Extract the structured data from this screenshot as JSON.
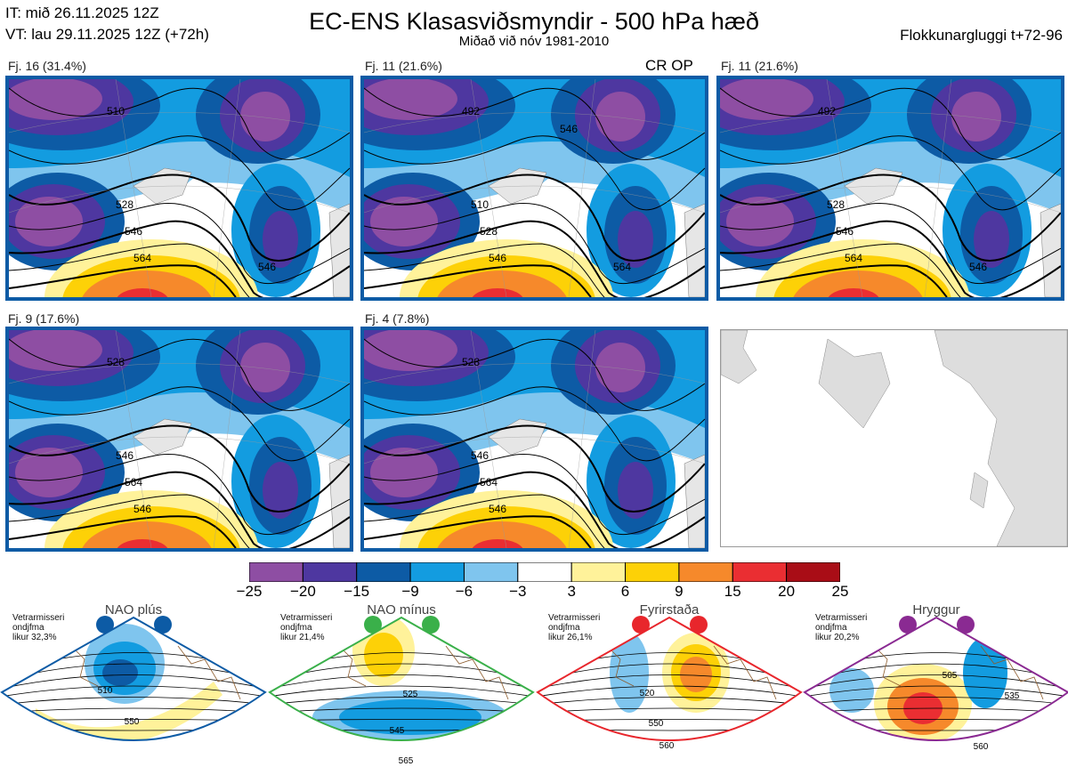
{
  "header": {
    "it_line": "IT: mið 26.11.2025 12Z",
    "vt_line": "VT: lau 29.11.2025 12Z  (+72h)",
    "title": "EC-ENS Klasasviðsmyndir - 500 hPa hæð",
    "subtitle": "Miðað við nóv 1981-2010",
    "window": "Flokkunargluggi t+72-96"
  },
  "panels": [
    {
      "label": "Fj. 16 (31.4%)",
      "contour_labels": [
        "510",
        "528",
        "546",
        "564",
        "546"
      ]
    },
    {
      "label": "Fj. 11 (21.6%)",
      "contour_labels": [
        "492",
        "510",
        "528",
        "546",
        "564",
        "546"
      ]
    },
    {
      "label": "Fj. 11 (21.6%)",
      "contour_labels": [
        "492",
        "528",
        "546",
        "564",
        "546"
      ]
    },
    {
      "label": "Fj. 9 (17.6%)",
      "contour_labels": [
        "528",
        "546",
        "564",
        "546"
      ]
    },
    {
      "label": "Fj. 4 (7.8%)",
      "contour_labels": [
        "528",
        "546",
        "564",
        "546"
      ]
    }
  ],
  "cr_op_label": "CR OP",
  "colorbar": {
    "ticks": [
      "−25",
      "−20",
      "−15",
      "−9",
      "−6",
      "−3",
      "3",
      "6",
      "9",
      "15",
      "20",
      "25"
    ],
    "colors": [
      "#8e4ea3",
      "#4e37a0",
      "#0d5ba5",
      "#139ce0",
      "#7fc5ee",
      "#ffffff",
      "#fff29a",
      "#fdd107",
      "#f6892b",
      "#ea2e32",
      "#a90d16"
    ]
  },
  "regimes": [
    {
      "name": "NAO plús",
      "color": "#0d5ba5",
      "stats": "Vetrarmisseri\nondjfma\nlikur 32,3%",
      "contour_labels": [
        "510",
        "550"
      ]
    },
    {
      "name": "NAO mínus",
      "color": "#3ab04a",
      "stats": "Vetrarmisseri\nondjfma\nlikur 21,4%",
      "contour_labels": [
        "525",
        "545",
        "565"
      ]
    },
    {
      "name": "Fyrirstaða",
      "color": "#e8262c",
      "stats": "Vetrarmisseri\nondjfma\nlikur 26,1%",
      "contour_labels": [
        "520",
        "550",
        "560"
      ]
    },
    {
      "name": "Hryggur",
      "color": "#8a2a92",
      "stats": "Vetrarmisseri\nondjfma\nlikur 20,2%",
      "contour_labels": [
        "505",
        "535",
        "560"
      ]
    }
  ]
}
